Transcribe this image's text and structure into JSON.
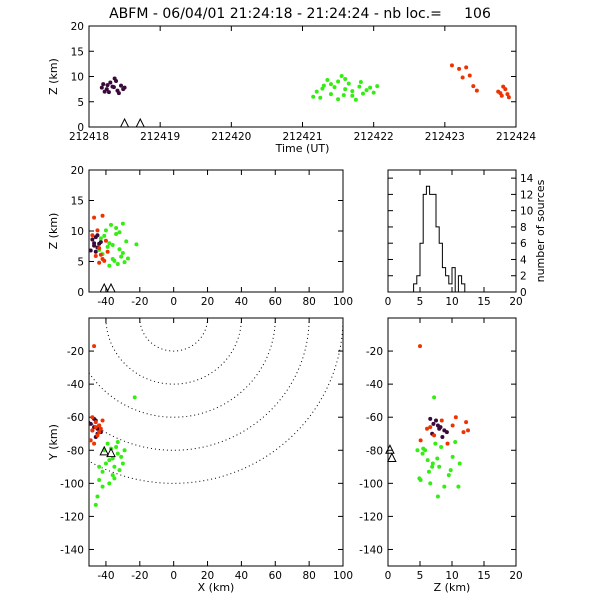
{
  "title": "ABFM - 06/04/01 21:24:18 - 21:24:24 - nb loc.=     106",
  "colors": {
    "dark": "#3a0a3a",
    "green": "#33ee11",
    "red": "#ee3300",
    "axis": "#000000"
  },
  "chart_data": [
    {
      "id": "time-height",
      "type": "scatter",
      "xlabel": "Time (UT)",
      "ylabel": "Z (km)",
      "xlim": [
        212418,
        212424
      ],
      "ylim": [
        0,
        20
      ],
      "xticks": [
        "212418",
        "212419",
        "212420",
        "212421",
        "212422",
        "212423",
        "212424"
      ],
      "yticks": [
        "0",
        "5",
        "10",
        "15",
        "20"
      ],
      "stations_x": [
        212418.5,
        212418.72
      ],
      "series": [
        {
          "color": "dark",
          "points": [
            [
              212418.2,
              8.5
            ],
            [
              212418.25,
              7.5
            ],
            [
              212418.3,
              8.8
            ],
            [
              212418.35,
              7.9
            ],
            [
              212418.4,
              7.2
            ],
            [
              212418.45,
              8.2
            ],
            [
              212418.5,
              7.8
            ],
            [
              212418.28,
              6.9
            ],
            [
              212418.38,
              9.1
            ],
            [
              212418.22,
              7.0
            ],
            [
              212418.42,
              6.7
            ],
            [
              212418.33,
              8.0
            ],
            [
              212418.48,
              7.5
            ],
            [
              212418.26,
              8.3
            ],
            [
              212418.36,
              9.6
            ],
            [
              212418.18,
              7.8
            ]
          ]
        },
        {
          "color": "green",
          "points": [
            [
              212421.2,
              7.0
            ],
            [
              212421.3,
              8.2
            ],
            [
              212421.4,
              6.5
            ],
            [
              212421.5,
              9.0
            ],
            [
              212421.55,
              10.1
            ],
            [
              212421.6,
              7.5
            ],
            [
              212421.7,
              6.2
            ],
            [
              212421.8,
              8.0
            ],
            [
              212421.9,
              7.3
            ],
            [
              212422.0,
              6.8
            ],
            [
              212421.25,
              5.8
            ],
            [
              212421.35,
              9.3
            ],
            [
              212421.45,
              7.9
            ],
            [
              212421.65,
              8.6
            ],
            [
              212421.75,
              5.4
            ],
            [
              212421.85,
              6.6
            ],
            [
              212421.95,
              7.8
            ],
            [
              212422.05,
              8.1
            ],
            [
              212421.15,
              6.0
            ],
            [
              212421.5,
              5.5
            ],
            [
              212421.6,
              9.5
            ],
            [
              212421.7,
              7.1
            ],
            [
              212421.82,
              8.9
            ],
            [
              212421.58,
              6.3
            ],
            [
              212421.4,
              8.5
            ],
            [
              212421.28,
              7.6
            ]
          ]
        },
        {
          "color": "red",
          "points": [
            [
              212423.1,
              12.2
            ],
            [
              212423.2,
              11.5
            ],
            [
              212423.25,
              9.8
            ],
            [
              212423.35,
              10.2
            ],
            [
              212423.4,
              8.1
            ],
            [
              212423.45,
              7.2
            ],
            [
              212423.3,
              11.8
            ],
            [
              212423.75,
              7.0
            ],
            [
              212423.8,
              6.2
            ],
            [
              212423.85,
              7.5
            ],
            [
              212423.9,
              5.9
            ],
            [
              212423.78,
              6.7
            ],
            [
              212423.88,
              6.5
            ],
            [
              212423.82,
              8.0
            ]
          ]
        }
      ]
    },
    {
      "id": "x-height",
      "type": "scatter",
      "xlabel": "",
      "ylabel": "Z (km)",
      "xlim": [
        -50,
        100
      ],
      "ylim": [
        0,
        20
      ],
      "xticks": [
        "-40",
        "-20",
        "0",
        "20",
        "40",
        "60",
        "80",
        "100"
      ],
      "yticks": [
        "0",
        "5",
        "10",
        "15",
        "20"
      ],
      "stations_x": [
        -41,
        -37
      ],
      "series": [
        {
          "color": "dark",
          "points": [
            [
              -47,
              8.0
            ],
            [
              -45,
              7.3
            ],
            [
              -49,
              6.8
            ],
            [
              -46,
              9.0
            ],
            [
              -44,
              7.9
            ],
            [
              -48,
              8.6
            ],
            [
              -46,
              6.6
            ],
            [
              -43,
              8.2
            ],
            [
              -47,
              7.6
            ],
            [
              -45,
              9.3
            ]
          ]
        },
        {
          "color": "green",
          "points": [
            [
              -42,
              6.2
            ],
            [
              -38,
              8.0
            ],
            [
              -36,
              5.4
            ],
            [
              -34,
              9.5
            ],
            [
              -32,
              7.0
            ],
            [
              -30,
              6.4
            ],
            [
              -28,
              8.3
            ],
            [
              -40,
              10.1
            ],
            [
              -35,
              5.1
            ],
            [
              -33,
              4.6
            ],
            [
              -39,
              7.4
            ],
            [
              -37,
              11.0
            ],
            [
              -31,
              5.8
            ],
            [
              -29,
              4.9
            ],
            [
              -44,
              6.9
            ],
            [
              -41,
              9.2
            ],
            [
              -36,
              7.7
            ],
            [
              -22,
              7.8
            ],
            [
              -34,
              10.5
            ],
            [
              -38,
              4.3
            ],
            [
              -32,
              9.8
            ],
            [
              -30,
              11.2
            ],
            [
              -43,
              8.8
            ],
            [
              -27,
              5.5
            ]
          ]
        },
        {
          "color": "red",
          "points": [
            [
              -47,
              12.2
            ],
            [
              -42,
              12.5
            ],
            [
              -45,
              10.1
            ],
            [
              -44,
              7.2
            ],
            [
              -43,
              6.1
            ],
            [
              -41,
              5.1
            ],
            [
              -46,
              5.9
            ],
            [
              -40,
              8.4
            ],
            [
              -48,
              9.3
            ],
            [
              -39,
              6.6
            ],
            [
              -42,
              5.4
            ],
            [
              -44,
              4.8
            ]
          ]
        }
      ]
    },
    {
      "id": "height-histogram",
      "type": "bar",
      "xlabel": "",
      "ylabel": "number of sources",
      "xlim": [
        0,
        20
      ],
      "ylim": [
        0,
        15
      ],
      "xticks": [
        "0",
        "5",
        "10",
        "15",
        "20"
      ],
      "yticks": [
        "0",
        "2",
        "4",
        "6",
        "8",
        "10",
        "12",
        "14"
      ],
      "bin_edges": [
        0,
        0.5,
        1,
        1.5,
        2,
        2.5,
        3,
        3.5,
        4,
        4.5,
        5,
        5.5,
        6,
        6.5,
        7,
        7.5,
        8,
        8.5,
        9,
        9.5,
        10,
        10.5,
        11,
        11.5,
        12,
        12.5,
        13,
        13.5,
        14,
        14.5,
        15,
        15.5,
        16,
        16.5,
        17,
        17.5,
        18,
        18.5,
        19,
        19.5,
        20
      ],
      "values": [
        0,
        0,
        0,
        0,
        0,
        0,
        0,
        0,
        1,
        2,
        6,
        12,
        13,
        12,
        12,
        8,
        6,
        3,
        2,
        1,
        3,
        0,
        2,
        1,
        0,
        0,
        0,
        0,
        0,
        0,
        0,
        0,
        0,
        0,
        0,
        0,
        0,
        0,
        0,
        0
      ]
    },
    {
      "id": "plan-view",
      "type": "scatter",
      "xlabel": "X (km)",
      "ylabel": "Y (km)",
      "xlim": [
        -50,
        100
      ],
      "ylim": [
        -150,
        0
      ],
      "xticks": [
        "-40",
        "-20",
        "0",
        "20",
        "40",
        "60",
        "80",
        "100"
      ],
      "yticks": [
        "-140",
        "-120",
        "-100",
        "-80",
        "-60",
        "-40",
        "-20"
      ],
      "range_rings_km": [
        20,
        40,
        60,
        80,
        100
      ],
      "ring_center": [
        0,
        0
      ],
      "stations": [
        [
          -37,
          -82
        ],
        [
          -41,
          -81
        ]
      ],
      "series": [
        {
          "color": "dark",
          "points": [
            [
              -46,
              -62
            ],
            [
              -47,
              -66
            ],
            [
              -45,
              -70
            ],
            [
              -48,
              -68
            ],
            [
              -44,
              -65
            ],
            [
              -46,
              -72
            ],
            [
              -49,
              -64
            ],
            [
              -43,
              -69
            ],
            [
              -47,
              -61
            ],
            [
              -45,
              -67
            ]
          ]
        },
        {
          "color": "green",
          "points": [
            [
              -38,
              -86
            ],
            [
              -35,
              -90
            ],
            [
              -33,
              -82
            ],
            [
              -36,
              -95
            ],
            [
              -40,
              -88
            ],
            [
              -42,
              -93
            ],
            [
              -34,
              -78
            ],
            [
              -31,
              -84
            ],
            [
              -44,
              -98
            ],
            [
              -45,
              -108
            ],
            [
              -46,
              -113
            ],
            [
              -38,
              -100
            ],
            [
              -29,
              -80
            ],
            [
              -39,
              -76
            ],
            [
              -32,
              -92
            ],
            [
              -41,
              -80
            ],
            [
              -36,
              -85
            ],
            [
              -30,
              -88
            ],
            [
              -42,
              -102
            ],
            [
              -37,
              -79
            ],
            [
              -23,
              -48
            ],
            [
              -44,
              -90
            ],
            [
              -35,
              -97
            ],
            [
              -33,
              -75
            ]
          ]
        },
        {
          "color": "red",
          "points": [
            [
              -47,
              -17
            ],
            [
              -46,
              -63
            ],
            [
              -48,
              -68
            ],
            [
              -44,
              -65
            ],
            [
              -45,
              -71
            ],
            [
              -43,
              -67
            ],
            [
              -49,
              -74
            ],
            [
              -47,
              -76
            ],
            [
              -42,
              -62
            ],
            [
              -46,
              -66
            ],
            [
              -44,
              -69
            ],
            [
              -48,
              -60
            ]
          ]
        }
      ]
    },
    {
      "id": "height-y",
      "type": "scatter",
      "xlabel": "Z (km)",
      "ylabel": "",
      "xlim": [
        0,
        20
      ],
      "ylim": [
        -150,
        0
      ],
      "xticks": [
        "0",
        "5",
        "10",
        "15",
        "20"
      ],
      "yticks": [
        "-140",
        "-120",
        "-100",
        "-80",
        "-60",
        "-40",
        "-20"
      ],
      "stations": [
        [
          0.3,
          -80
        ],
        [
          0.6,
          -85
        ]
      ],
      "series": [
        {
          "color": "dark",
          "points": [
            [
              7.5,
              -62
            ],
            [
              8.2,
              -66
            ],
            [
              6.9,
              -70
            ],
            [
              8.8,
              -68
            ],
            [
              7.8,
              -65
            ],
            [
              8.5,
              -72
            ],
            [
              7.1,
              -64
            ],
            [
              9.2,
              -69
            ],
            [
              6.6,
              -61
            ],
            [
              8.0,
              -67
            ]
          ]
        },
        {
          "color": "green",
          "points": [
            [
              6.2,
              -86
            ],
            [
              8.0,
              -90
            ],
            [
              5.4,
              -82
            ],
            [
              9.5,
              -95
            ],
            [
              7.0,
              -88
            ],
            [
              6.4,
              -93
            ],
            [
              8.3,
              -78
            ],
            [
              10.1,
              -84
            ],
            [
              5.1,
              -98
            ],
            [
              7.8,
              -108
            ],
            [
              11.0,
              -102
            ],
            [
              6.6,
              -100
            ],
            [
              4.6,
              -80
            ],
            [
              7.4,
              -76
            ],
            [
              9.8,
              -92
            ],
            [
              5.8,
              -80
            ],
            [
              7.7,
              -85
            ],
            [
              11.2,
              -88
            ],
            [
              8.8,
              -102
            ],
            [
              5.5,
              -79
            ],
            [
              7.2,
              -48
            ],
            [
              6.9,
              -90
            ],
            [
              4.9,
              -97
            ],
            [
              10.5,
              -75
            ]
          ]
        },
        {
          "color": "red",
          "points": [
            [
              5.0,
              -17
            ],
            [
              12.2,
              -63
            ],
            [
              12.5,
              -68
            ],
            [
              10.1,
              -65
            ],
            [
              7.2,
              -71
            ],
            [
              6.1,
              -67
            ],
            [
              5.1,
              -74
            ],
            [
              9.3,
              -76
            ],
            [
              8.4,
              -62
            ],
            [
              6.6,
              -66
            ],
            [
              11.8,
              -69
            ],
            [
              10.6,
              -60
            ]
          ]
        }
      ]
    }
  ]
}
